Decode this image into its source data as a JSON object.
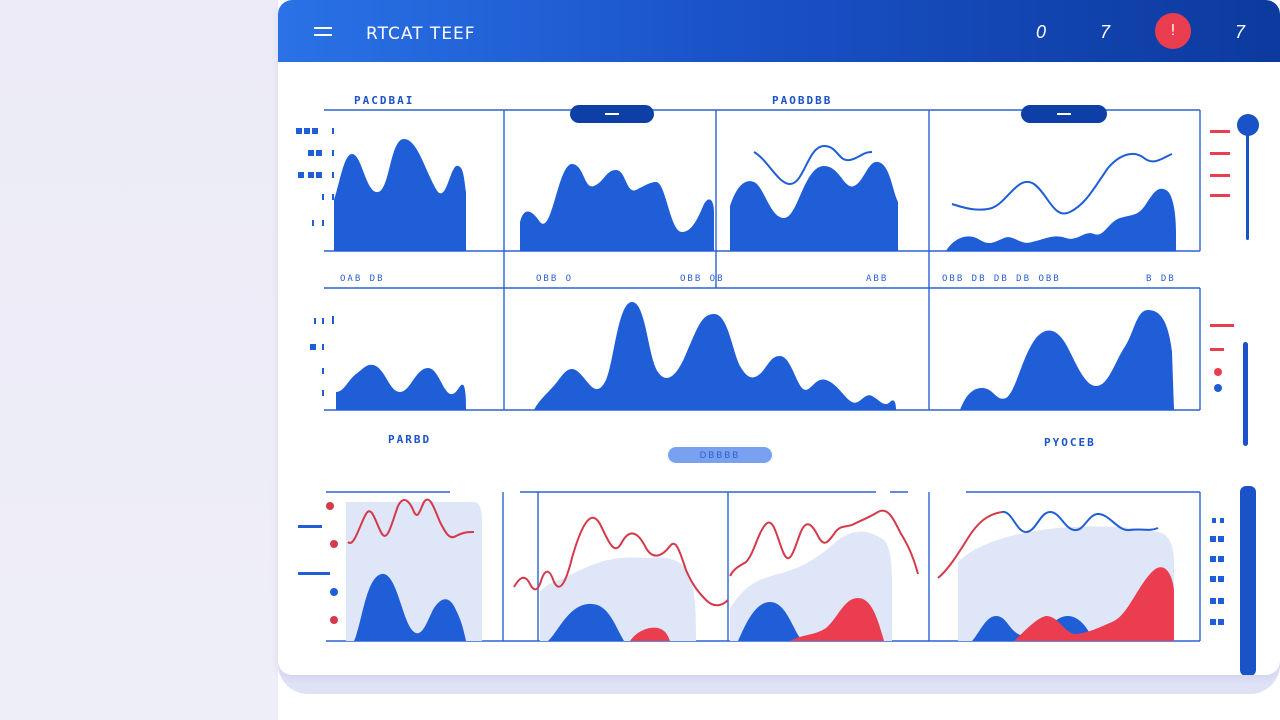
{
  "app": {
    "title": "RTCAT TEEF"
  },
  "header": {
    "left_glyph": "0",
    "mid_glyph": "7",
    "alert_glyph": "!",
    "right_glyph": "7"
  },
  "section_labels": {
    "top_left": "PACDBAI",
    "top_mid": "PAOBDBB",
    "bottom_left": "PARBD",
    "bottom_mid": "DBBBB",
    "bottom_right": "PYOCEB"
  },
  "chip_row_labels": {
    "a": "OAB DB",
    "b": "OBB O",
    "c": "OBB OB",
    "d": "ABB",
    "e": "OBB DB DB DB OBB",
    "f": "B DB"
  },
  "side_legend": {
    "left_top_rows": [
      "DDD",
      "DD",
      "DD",
      "D",
      "D"
    ],
    "left_mid_rows": [
      "D D",
      "D",
      "D",
      "D"
    ],
    "left_bottom_rows": [
      "DBB",
      "DBB"
    ],
    "right_bottom_rows": [
      "B",
      "DB",
      "DB",
      "DB",
      "DB",
      "DB"
    ]
  },
  "colors": {
    "primary": "#1a52c8",
    "header_start": "#2a72e6",
    "header_end": "#0c3a9e",
    "accent_red": "#ea3d4f",
    "area_fill": "#1f5ed6",
    "soft_fill": "#dfe6f7",
    "line_red": "#d43a4a",
    "line_blue": "#1f5ed6"
  },
  "icons": {
    "menu": "hamburger-icon",
    "alert": "alert-icon"
  }
}
